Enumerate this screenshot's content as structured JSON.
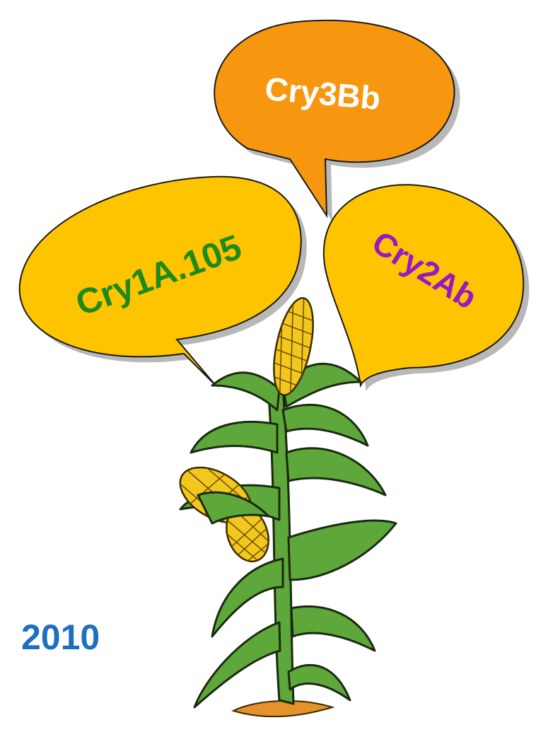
{
  "bubbles": [
    {
      "label": "Cry3Bb"
    },
    {
      "label": "Cry1A.105"
    },
    {
      "label": "Cry2Ab"
    }
  ],
  "year": "2010"
}
